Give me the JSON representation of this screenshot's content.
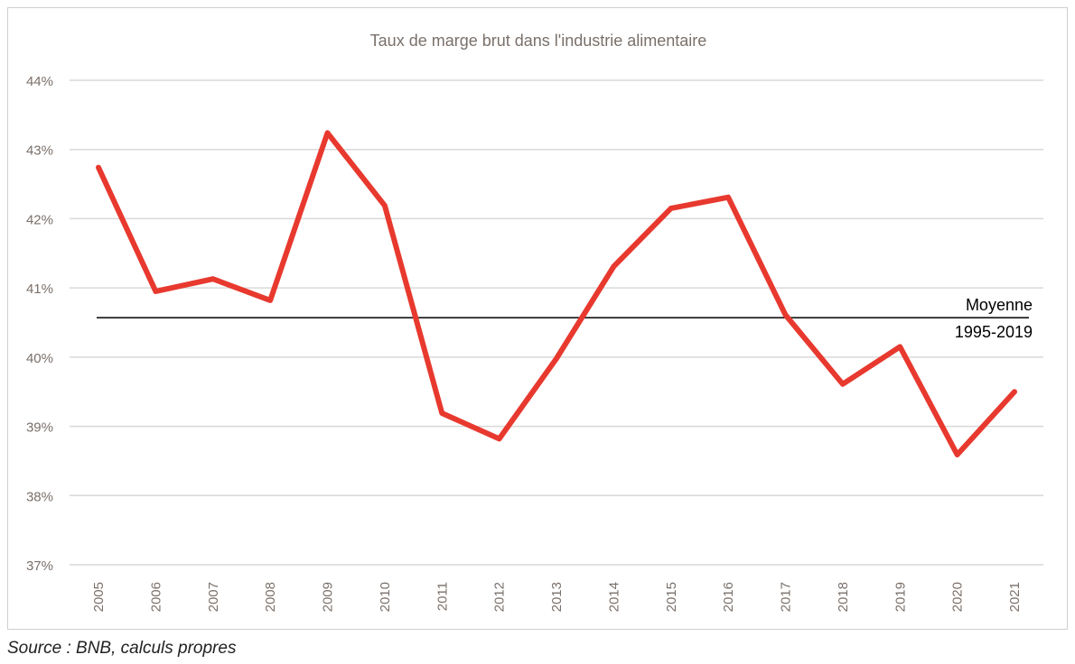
{
  "chart_data": {
    "type": "line",
    "title": "Taux de marge brut dans l'industrie alimentaire",
    "xlabel": "",
    "ylabel": "",
    "x": [
      "2005",
      "2006",
      "2007",
      "2008",
      "2009",
      "2010",
      "2011",
      "2012",
      "2013",
      "2014",
      "2015",
      "2016",
      "2017",
      "2018",
      "2019",
      "2020",
      "2021"
    ],
    "series": [
      {
        "name": "Taux de marge brut",
        "color": "#e8392f",
        "values": [
          42.74,
          40.95,
          41.13,
          40.82,
          43.24,
          42.19,
          39.19,
          38.82,
          39.98,
          41.31,
          42.15,
          42.31,
          40.61,
          39.61,
          40.15,
          38.59,
          39.5
        ]
      }
    ],
    "reference_line": {
      "value": 40.57,
      "label_line1": "Moyenne",
      "label_line2": "1995-2019",
      "color": "#000000"
    },
    "ylim": [
      37,
      44
    ],
    "yticks": [
      37,
      38,
      39,
      40,
      41,
      42,
      43,
      44
    ],
    "ytick_labels": [
      "37%",
      "38%",
      "39%",
      "40%",
      "41%",
      "42%",
      "43%",
      "44%"
    ],
    "grid": true,
    "legend": "none"
  },
  "source": "Source : BNB, calculs propres"
}
